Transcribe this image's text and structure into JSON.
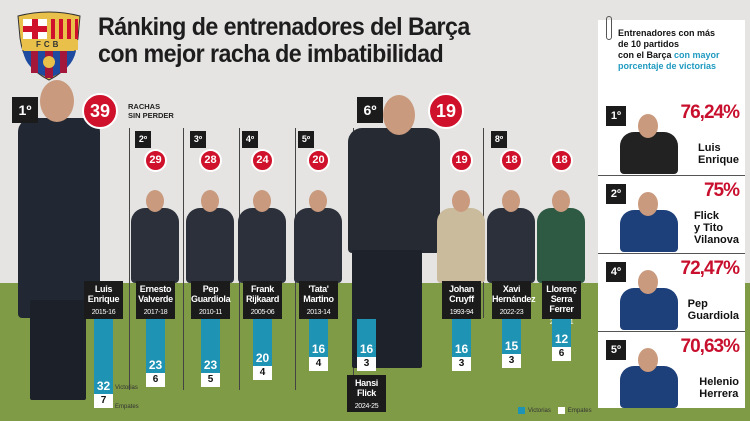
{
  "title_line1": "Ránking de entrenadores del Barça",
  "title_line2": "con mejor racha de imbatibilidad",
  "crest_text": "FCB",
  "streak_caption_1": "RACHAS",
  "streak_caption_2": "SIN PERDER",
  "colors": {
    "victorias": "#1f93b4",
    "empates": "#ffffff",
    "accent_red": "#d0112b",
    "grass": "#7f9b46"
  },
  "legend": {
    "victorias": "Victorias",
    "empates": "Empates"
  },
  "bar_side_labels": {
    "victorias": "Victorias",
    "empates": "Empates"
  },
  "chart_data": {
    "type": "bar",
    "title": "Ránking de entrenadores del Barça con mejor racha de imbatibilidad",
    "categories": [
      "Luis Enrique 2015-16",
      "Ernesto Valverde 2017-18",
      "Pep Guardiola 2010-11",
      "Frank Rijkaard 2005-06",
      "'Tata' Martino 2013-14",
      "Hansi Flick 2024-25",
      "Johan Cruyff 1993-94",
      "Xavi Hernández 2022-23",
      "Llorenç Serra Ferrer 2000-01"
    ],
    "coaches": [
      {
        "rank": "1º",
        "name1": "Luis",
        "name2": "Enrique",
        "season": "2015-16",
        "streak": 39,
        "victorias": 32,
        "empates": 7
      },
      {
        "rank": "2º",
        "name1": "Ernesto",
        "name2": "Valverde",
        "season": "2017-18",
        "streak": 29,
        "victorias": 23,
        "empates": 6
      },
      {
        "rank": "3º",
        "name1": "Pep",
        "name2": "Guardiola",
        "season": "2010-11",
        "streak": 28,
        "victorias": 23,
        "empates": 5
      },
      {
        "rank": "4º",
        "name1": "Frank",
        "name2": "Rijkaard",
        "season": "2005-06",
        "streak": 24,
        "victorias": 20,
        "empates": 4
      },
      {
        "rank": "5º",
        "name1": "'Tata'",
        "name2": "Martino",
        "season": "2013-14",
        "streak": 20,
        "victorias": 16,
        "empates": 4
      },
      {
        "rank": "6º",
        "name1": "Hansi",
        "name2": "Flick",
        "season": "2024-25",
        "streak": 19,
        "victorias": 16,
        "empates": 3
      },
      {
        "rank": "",
        "name1": "Johan",
        "name2": "Cruyff",
        "season": "1993-94",
        "streak": 19,
        "victorias": 16,
        "empates": 3
      },
      {
        "rank": "8º",
        "name1": "Xavi",
        "name2": "Hernández",
        "season": "2022-23",
        "streak": 18,
        "victorias": 15,
        "empates": 3
      },
      {
        "rank": "",
        "name1": "Llorenç",
        "name2": "Serra Ferrer",
        "season": "2000-01",
        "streak": 18,
        "victorias": 12,
        "empates": 6
      }
    ],
    "series": [
      {
        "name": "Victorias"
      },
      {
        "name": "Empates"
      }
    ],
    "legend_position": "bottom-right"
  },
  "panel": {
    "heading1": "Entrenadores con más",
    "heading2": "de 10 partidos",
    "heading3": "con el Barça",
    "heading_highlight1": "con mayor",
    "heading_highlight2": "porcentaje de victorias",
    "items": [
      {
        "rank": "1º",
        "pct": "76,24%",
        "name1": "Luis",
        "name2": "Enrique",
        "name3": ""
      },
      {
        "rank": "2º",
        "pct": "75%",
        "name1": "Flick",
        "name2": "y Tito",
        "name3": "Vilanova"
      },
      {
        "rank": "4º",
        "pct": "72,47%",
        "name1": "Pep",
        "name2": "Guardiola",
        "name3": ""
      },
      {
        "rank": "5º",
        "pct": "70,63%",
        "name1": "Helenio",
        "name2": "Herrera",
        "name3": ""
      }
    ]
  }
}
